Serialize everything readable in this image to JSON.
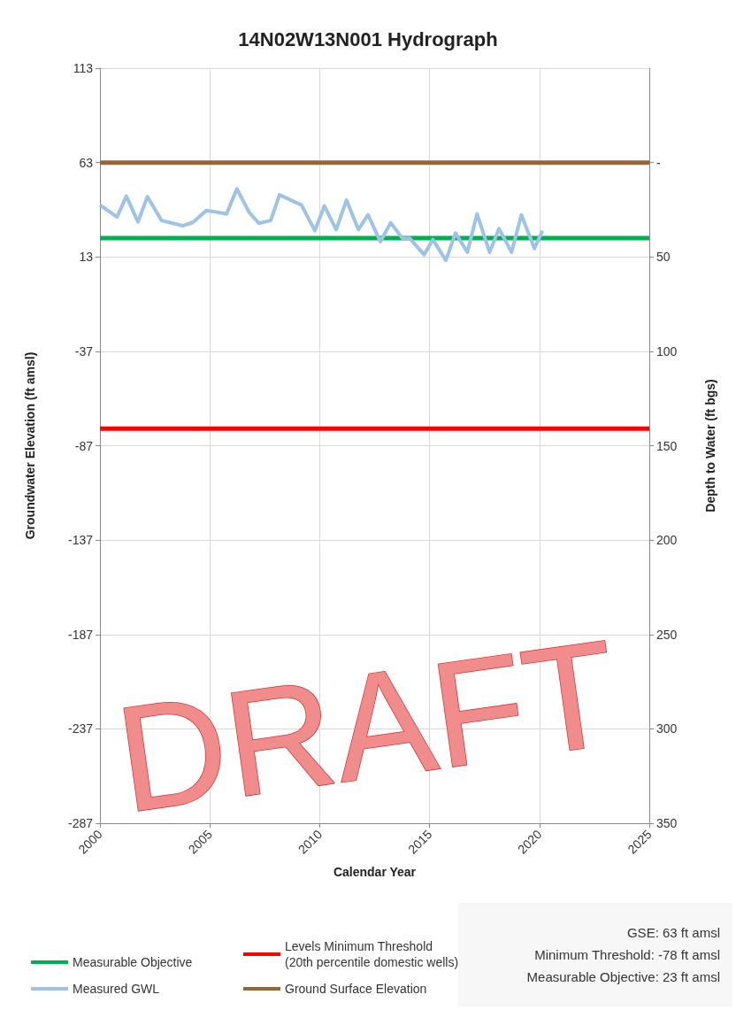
{
  "chart_data": {
    "type": "line",
    "title": "14N02W13N001 Hydrograph",
    "xlabel": "Calendar Year",
    "ylabel": "Groundwater Elevation (ft amsl)",
    "y2label": "Depth to Water (ft bgs)",
    "series": [
      {
        "name": "Measurable Objective",
        "color": "#00b050",
        "x": [
          2000,
          2025
        ],
        "values": [
          23,
          23
        ]
      },
      {
        "name": "Levels Minimum Threshold\n(20th percentile domestic wells)",
        "color": "#ff0000",
        "x": [
          2000,
          2025
        ],
        "values": [
          -78,
          -78
        ]
      },
      {
        "name": "Measured GWL",
        "color": "#9dc3e6",
        "x": [
          2000.0,
          2000.78,
          2001.2,
          2001.73,
          2002.16,
          2002.8,
          2003.77,
          2004.24,
          2004.84,
          2005.76,
          2006.23,
          2006.79,
          2007.23,
          2007.77,
          2008.17,
          2009.17,
          2009.78,
          2010.21,
          2010.75,
          2011.22,
          2011.76,
          2012.2,
          2012.76,
          2013.23,
          2013.77,
          2014.1,
          2014.75,
          2015.15,
          2015.74,
          2016.18,
          2016.72,
          2017.16,
          2017.73,
          2018.16,
          2018.73,
          2019.18,
          2019.77,
          2020.14
        ],
        "values": [
          40.5,
          34.2,
          45.2,
          31.6,
          44.9,
          32.3,
          29.5,
          31.4,
          37.6,
          35.8,
          49.1,
          36.6,
          30.8,
          32.3,
          45.9,
          40.5,
          26.9,
          40.0,
          27.5,
          43.1,
          27.5,
          35.3,
          21.1,
          31.1,
          22.8,
          22.8,
          14.2,
          22.2,
          11.2,
          25.6,
          15.5,
          35.8,
          15.5,
          28.0,
          15.5,
          35.3,
          17.5,
          26.9
        ]
      },
      {
        "name": "Ground Surface Elevation",
        "color": "#996633",
        "x": [
          2000,
          2025
        ],
        "values": [
          63,
          63
        ]
      }
    ],
    "xlim": [
      2000,
      2025
    ],
    "xticks": [
      2000,
      2005,
      2010,
      2015,
      2020,
      2025
    ],
    "ylim": [
      -287,
      113
    ],
    "yticks": [
      -287,
      -237,
      -187,
      -137,
      -87,
      -37,
      13,
      63,
      113
    ],
    "y2lim": [
      350,
      -50
    ],
    "y2ticks": [
      350,
      300,
      250,
      200,
      150,
      100,
      50,
      {
        "value": 0,
        "label": "-"
      }
    ],
    "grid": true,
    "legend": "bottom",
    "marker": "none",
    "line_style": "solid",
    "annotations": [
      "GSE: 63 ft amsl",
      "Minimum Threshold: -78 ft amsl",
      "Measurable Objective: 23 ft amsl",
      "DRAFT"
    ]
  }
}
